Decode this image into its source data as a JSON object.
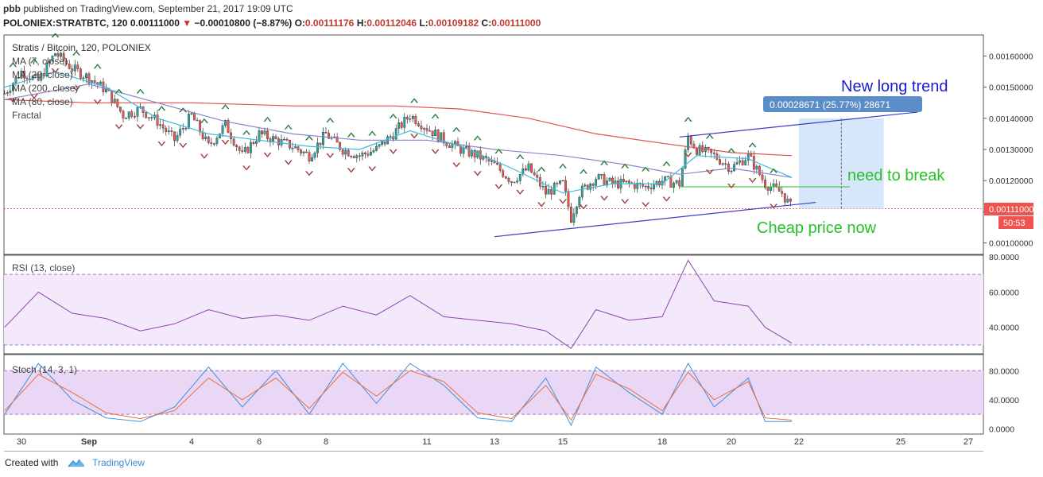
{
  "header": {
    "author": "pbb",
    "published_text": "published on TradingView.com, September 21, 2017 19:09 UTC"
  },
  "quote": {
    "symbol": "POLONIEX:STRATBTC, 120",
    "last": "0.00111000",
    "change": "−0.00010800 (−8.87%)",
    "open_label": "O:",
    "open": "0.00111176",
    "high_label": "H:",
    "high": "0.00112046",
    "low_label": "L:",
    "low": "0.00109182",
    "close_label": "C:",
    "close": "0.00111000"
  },
  "legend": {
    "main": "Stratis / Bitcoin, 120, POLONIEX",
    "studies": [
      "MA (7, close)",
      "MA (20, close)",
      "MA (200, close)",
      "MA (80, close)",
      "Fractal"
    ]
  },
  "rsi_label": "RSI (13, close)",
  "stoch_label": "Stoch (14, 3, 1)",
  "price_badge": {
    "value": "0.00111000",
    "countdown": "50:53"
  },
  "measure_label": "0.00028671 (25.77%) 28671",
  "annotations": {
    "new_trend": "New long trend",
    "need_break": "need to break",
    "cheap": "Cheap price now"
  },
  "footer": {
    "created": "Created with",
    "brand": "TradingView"
  },
  "colors": {
    "up": "#26a69a",
    "down": "#ef5350",
    "ma7": "#3bbdd8",
    "ma20": "#8c84c9",
    "ma200": "#e05050",
    "ma80": "#8c84c9",
    "rsi": "#8e44ad",
    "stoch_k": "#3d8fd9",
    "stoch_d": "#e87040",
    "band": "#ead7f5",
    "trend": "#3d3dc4",
    "green_text": "#27c227",
    "blue_text": "#1a1acf",
    "measure": "#cfe3fb"
  },
  "chart_data": [
    {
      "type": "candlestick",
      "title": "Stratis / Bitcoin, 120, POLONIEX",
      "x_tick_labels": [
        "30",
        "Sep",
        "4",
        "6",
        "8",
        "11",
        "13",
        "15",
        "18",
        "20",
        "22",
        "25",
        "27"
      ],
      "x_tick_dates": [
        "2017-08-30",
        "2017-09-01",
        "2017-09-04",
        "2017-09-06",
        "2017-09-08",
        "2017-09-11",
        "2017-09-13",
        "2017-09-15",
        "2017-09-18",
        "2017-09-20",
        "2017-09-22",
        "2017-09-25",
        "2017-09-27"
      ],
      "y_tick_labels": [
        "0.00100000",
        "0.00110000",
        "0.00120000",
        "0.00130000",
        "0.00140000",
        "0.00150000",
        "0.00160000"
      ],
      "ylim": [
        0.00096,
        0.00168
      ],
      "grid": false,
      "close_trace": [
        [
          "2017-08-29T12:00",
          0.00148
        ],
        [
          "2017-08-30T00:00",
          0.00155
        ],
        [
          "2017-08-30T12:00",
          0.00152
        ],
        [
          "2017-08-31T00:00",
          0.00161
        ],
        [
          "2017-08-31T12:00",
          0.00156
        ],
        [
          "2017-09-01T00:00",
          0.00153
        ],
        [
          "2017-09-01T12:00",
          0.00149
        ],
        [
          "2017-09-02T00:00",
          0.00141
        ],
        [
          "2017-09-02T12:00",
          0.00143
        ],
        [
          "2017-09-03T00:00",
          0.00139
        ],
        [
          "2017-09-03T12:00",
          0.00133
        ],
        [
          "2017-09-04T00:00",
          0.00141
        ],
        [
          "2017-09-04T12:00",
          0.00131
        ],
        [
          "2017-09-05T00:00",
          0.00138
        ],
        [
          "2017-09-05T12:00",
          0.00128
        ],
        [
          "2017-09-06T00:00",
          0.00135
        ],
        [
          "2017-09-06T12:00",
          0.00133
        ],
        [
          "2017-09-07T00:00",
          0.00131
        ],
        [
          "2017-09-07T12:00",
          0.00128
        ],
        [
          "2017-09-08T00:00",
          0.00135
        ],
        [
          "2017-09-08T12:00",
          0.0013
        ],
        [
          "2017-09-09T00:00",
          0.00128
        ],
        [
          "2017-09-09T12:00",
          0.0013
        ],
        [
          "2017-09-10T00:00",
          0.00135
        ],
        [
          "2017-09-10T12:00",
          0.00141
        ],
        [
          "2017-09-11T00:00",
          0.00137
        ],
        [
          "2017-09-11T12:00",
          0.00133
        ],
        [
          "2017-09-12T00:00",
          0.0013
        ],
        [
          "2017-09-12T12:00",
          0.00128
        ],
        [
          "2017-09-13T00:00",
          0.00125
        ],
        [
          "2017-09-13T12:00",
          0.0012
        ],
        [
          "2017-09-14T00:00",
          0.00124
        ],
        [
          "2017-09-14T12:00",
          0.00116
        ],
        [
          "2017-09-15T00:00",
          0.00119
        ],
        [
          "2017-09-15T06:00",
          0.00108
        ],
        [
          "2017-09-15T12:00",
          0.00116
        ],
        [
          "2017-09-16T00:00",
          0.00121
        ],
        [
          "2017-09-16T12:00",
          0.00119
        ],
        [
          "2017-09-17T00:00",
          0.00119
        ],
        [
          "2017-09-17T12:00",
          0.00118
        ],
        [
          "2017-09-18T00:00",
          0.0012
        ],
        [
          "2017-09-18T12:00",
          0.00119
        ],
        [
          "2017-09-18T18:00",
          0.00134
        ],
        [
          "2017-09-19T00:00",
          0.0013
        ],
        [
          "2017-09-19T12:00",
          0.00128
        ],
        [
          "2017-09-20T00:00",
          0.00124
        ],
        [
          "2017-09-20T12:00",
          0.00128
        ],
        [
          "2017-09-21T00:00",
          0.00119
        ],
        [
          "2017-09-21T12:00",
          0.00116
        ],
        [
          "2017-09-21T19:00",
          0.00111
        ]
      ],
      "ma7_trace": [
        [
          "2017-08-29T12:00",
          0.0015
        ],
        [
          "2017-08-31T00:00",
          0.00155
        ],
        [
          "2017-09-01T12:00",
          0.0015
        ],
        [
          "2017-09-03T00:00",
          0.0014
        ],
        [
          "2017-09-04T12:00",
          0.00135
        ],
        [
          "2017-09-06T00:00",
          0.00133
        ],
        [
          "2017-09-07T12:00",
          0.00131
        ],
        [
          "2017-09-09T00:00",
          0.0013
        ],
        [
          "2017-09-10T12:00",
          0.00136
        ],
        [
          "2017-09-12T00:00",
          0.00131
        ],
        [
          "2017-09-13T12:00",
          0.00124
        ],
        [
          "2017-09-15T00:00",
          0.00116
        ],
        [
          "2017-09-16T12:00",
          0.00119
        ],
        [
          "2017-09-18T00:00",
          0.00119
        ],
        [
          "2017-09-19T00:00",
          0.00128
        ],
        [
          "2017-09-20T12:00",
          0.00127
        ],
        [
          "2017-09-21T19:00",
          0.00121
        ]
      ],
      "ma20_trace": [
        [
          "2017-08-29T12:00",
          0.00146
        ],
        [
          "2017-09-01T00:00",
          0.00151
        ],
        [
          "2017-09-03T00:00",
          0.00145
        ],
        [
          "2017-09-05T00:00",
          0.00139
        ],
        [
          "2017-09-07T00:00",
          0.00135
        ],
        [
          "2017-09-09T00:00",
          0.00133
        ],
        [
          "2017-09-11T00:00",
          0.00133
        ],
        [
          "2017-09-13T00:00",
          0.0013
        ],
        [
          "2017-09-15T00:00",
          0.00128
        ],
        [
          "2017-09-17T00:00",
          0.00125
        ],
        [
          "2017-09-18T12:00",
          0.00122
        ],
        [
          "2017-09-20T00:00",
          0.00124
        ],
        [
          "2017-09-21T19:00",
          0.00121
        ]
      ],
      "ma200_trace": [
        [
          "2017-08-29T12:00",
          0.00146
        ],
        [
          "2017-09-01T00:00",
          0.00145
        ],
        [
          "2017-09-04T00:00",
          0.00145
        ],
        [
          "2017-09-07T00:00",
          0.00144
        ],
        [
          "2017-09-10T00:00",
          0.00144
        ],
        [
          "2017-09-12T00:00",
          0.00143
        ],
        [
          "2017-09-14T00:00",
          0.0014
        ],
        [
          "2017-09-16T00:00",
          0.00135
        ],
        [
          "2017-09-18T00:00",
          0.00132
        ],
        [
          "2017-09-20T00:00",
          0.00129
        ],
        [
          "2017-09-21T19:00",
          0.00128
        ]
      ],
      "support_line": [
        [
          "2017-09-13T00:00",
          0.00102
        ],
        [
          "2017-09-22T12:00",
          0.00113
        ]
      ],
      "resistance_line": [
        [
          "2017-09-18T12:00",
          0.00134
        ],
        [
          "2017-09-25T12:00",
          0.00142
        ]
      ],
      "break_level": [
        [
          "2017-09-18T12:00",
          0.00118
        ],
        [
          "2017-09-23T12:00",
          0.00118
        ]
      ],
      "last_price": 0.00111,
      "measure_box": {
        "x_from": "2017-09-22T00:00",
        "x_to": "2017-09-24T12:00",
        "y_from": 0.00111,
        "y_to": 0.0014,
        "change": 0.00028671,
        "percent": 25.77
      }
    },
    {
      "type": "line",
      "title": "RSI (13, close)",
      "y_tick_labels": [
        "40.0000",
        "60.0000",
        "80.0000"
      ],
      "ylim": [
        25,
        80
      ],
      "band": [
        30,
        70
      ],
      "values_trace": [
        [
          "2017-08-29T12:00",
          40
        ],
        [
          "2017-08-30T12:00",
          60
        ],
        [
          "2017-08-31T12:00",
          48
        ],
        [
          "2017-09-01T12:00",
          45
        ],
        [
          "2017-09-02T12:00",
          38
        ],
        [
          "2017-09-03T12:00",
          42
        ],
        [
          "2017-09-04T12:00",
          50
        ],
        [
          "2017-09-05T12:00",
          45
        ],
        [
          "2017-09-06T12:00",
          47
        ],
        [
          "2017-09-07T12:00",
          44
        ],
        [
          "2017-09-08T12:00",
          52
        ],
        [
          "2017-09-09T12:00",
          47
        ],
        [
          "2017-09-10T12:00",
          58
        ],
        [
          "2017-09-11T12:00",
          46
        ],
        [
          "2017-09-12T12:00",
          44
        ],
        [
          "2017-09-13T12:00",
          42
        ],
        [
          "2017-09-14T12:00",
          38
        ],
        [
          "2017-09-15T06:00",
          28
        ],
        [
          "2017-09-16T00:00",
          50
        ],
        [
          "2017-09-17T00:00",
          44
        ],
        [
          "2017-09-18T00:00",
          46
        ],
        [
          "2017-09-18T18:00",
          78
        ],
        [
          "2017-09-19T12:00",
          55
        ],
        [
          "2017-09-20T12:00",
          52
        ],
        [
          "2017-09-21T00:00",
          40
        ],
        [
          "2017-09-21T19:00",
          31
        ]
      ]
    },
    {
      "type": "line",
      "title": "Stoch (14, 3, 1)",
      "y_tick_labels": [
        "0.0000",
        "40.0000",
        "80.0000"
      ],
      "ylim": [
        -5,
        100
      ],
      "band": [
        20,
        80
      ],
      "k_trace": [
        [
          "2017-08-29T12:00",
          20
        ],
        [
          "2017-08-30T12:00",
          90
        ],
        [
          "2017-08-31T12:00",
          40
        ],
        [
          "2017-09-01T12:00",
          15
        ],
        [
          "2017-09-02T12:00",
          10
        ],
        [
          "2017-09-03T12:00",
          30
        ],
        [
          "2017-09-04T12:00",
          85
        ],
        [
          "2017-09-05T12:00",
          30
        ],
        [
          "2017-09-06T12:00",
          80
        ],
        [
          "2017-09-07T12:00",
          20
        ],
        [
          "2017-09-08T12:00",
          90
        ],
        [
          "2017-09-09T12:00",
          35
        ],
        [
          "2017-09-10T12:00",
          90
        ],
        [
          "2017-09-11T12:00",
          60
        ],
        [
          "2017-09-12T12:00",
          15
        ],
        [
          "2017-09-13T12:00",
          10
        ],
        [
          "2017-09-14T12:00",
          70
        ],
        [
          "2017-09-15T06:00",
          5
        ],
        [
          "2017-09-16T00:00",
          85
        ],
        [
          "2017-09-17T00:00",
          50
        ],
        [
          "2017-09-18T00:00",
          20
        ],
        [
          "2017-09-18T18:00",
          90
        ],
        [
          "2017-09-19T12:00",
          30
        ],
        [
          "2017-09-20T12:00",
          70
        ],
        [
          "2017-09-21T00:00",
          10
        ],
        [
          "2017-09-21T19:00",
          10
        ]
      ],
      "d_trace": [
        [
          "2017-08-29T12:00",
          25
        ],
        [
          "2017-08-30T12:00",
          75
        ],
        [
          "2017-08-31T12:00",
          50
        ],
        [
          "2017-09-01T12:00",
          22
        ],
        [
          "2017-09-02T12:00",
          14
        ],
        [
          "2017-09-03T12:00",
          25
        ],
        [
          "2017-09-04T12:00",
          70
        ],
        [
          "2017-09-05T12:00",
          40
        ],
        [
          "2017-09-06T12:00",
          70
        ],
        [
          "2017-09-07T12:00",
          28
        ],
        [
          "2017-09-08T12:00",
          78
        ],
        [
          "2017-09-09T12:00",
          45
        ],
        [
          "2017-09-10T12:00",
          80
        ],
        [
          "2017-09-11T12:00",
          65
        ],
        [
          "2017-09-12T12:00",
          22
        ],
        [
          "2017-09-13T12:00",
          14
        ],
        [
          "2017-09-14T12:00",
          60
        ],
        [
          "2017-09-15T06:00",
          12
        ],
        [
          "2017-09-16T00:00",
          75
        ],
        [
          "2017-09-17T00:00",
          55
        ],
        [
          "2017-09-18T00:00",
          25
        ],
        [
          "2017-09-18T18:00",
          78
        ],
        [
          "2017-09-19T12:00",
          40
        ],
        [
          "2017-09-20T12:00",
          65
        ],
        [
          "2017-09-21T00:00",
          15
        ],
        [
          "2017-09-21T19:00",
          12
        ]
      ]
    }
  ]
}
